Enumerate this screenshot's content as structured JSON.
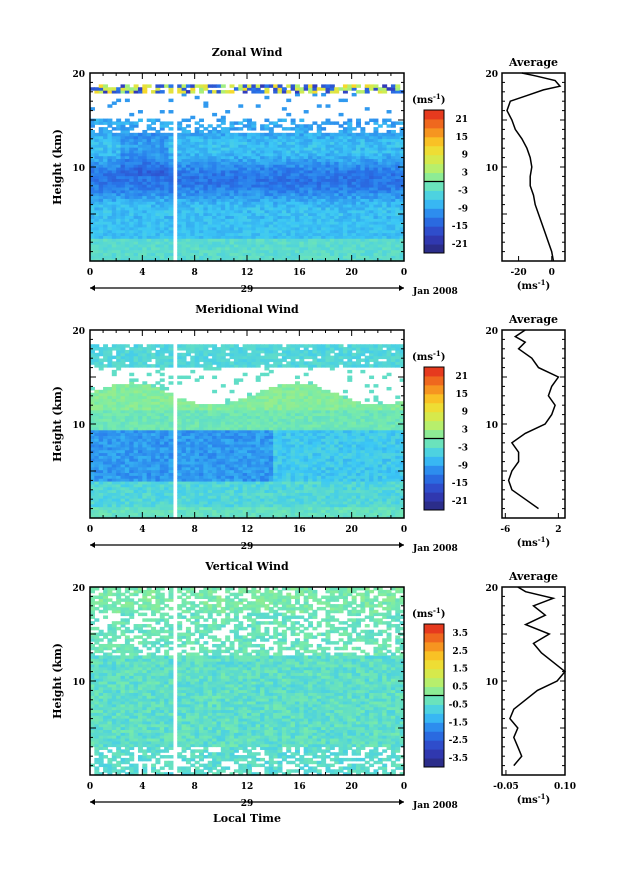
{
  "shared": {
    "ylabel": "Height (km)",
    "y_ticks": [
      "20",
      "10"
    ],
    "x_ticks": [
      "0",
      "4",
      "8",
      "12",
      "16",
      "20",
      "0"
    ],
    "day_label": "29",
    "date_label": "Jan 2008",
    "xlabel": "Local Time",
    "profile_title": "Average",
    "unit_label": "(ms",
    "unit_exp": "-1",
    "unit_close": ")"
  },
  "chart_data": [
    {
      "id": "zonal",
      "type": "heatmap",
      "title": "Zonal Wind",
      "ylim": [
        0,
        20
      ],
      "xlim": [
        0,
        24
      ],
      "colorbar": {
        "ticks": [
          "21",
          "15",
          "9",
          "3",
          "-3",
          "-9",
          "-15",
          "-21"
        ],
        "range": [
          -24,
          24
        ]
      },
      "profile": {
        "xlim": [
          -30,
          8
        ],
        "x_ticks": [
          -20,
          0
        ],
        "x_tick_labels": [
          "-20",
          "0"
        ],
        "points": [
          [
            1,
            0
          ],
          [
            0,
            1
          ],
          [
            -2,
            2
          ],
          [
            -4,
            3
          ],
          [
            -6,
            4
          ],
          [
            -8,
            5
          ],
          [
            -10,
            6
          ],
          [
            -11,
            7
          ],
          [
            -13,
            8
          ],
          [
            -13,
            9
          ],
          [
            -12,
            10
          ],
          [
            -13,
            11
          ],
          [
            -15,
            12
          ],
          [
            -18,
            13
          ],
          [
            -22,
            14
          ],
          [
            -24,
            15
          ],
          [
            -27,
            16
          ],
          [
            -25,
            17
          ],
          [
            -15,
            17.6
          ],
          [
            -5,
            18.2
          ],
          [
            5,
            18.6
          ],
          [
            2,
            19.2
          ],
          [
            -10,
            19.7
          ],
          [
            -18,
            20
          ]
        ]
      }
    },
    {
      "id": "meridional",
      "type": "heatmap",
      "title": "Meridional Wind",
      "ylim": [
        0,
        20
      ],
      "xlim": [
        0,
        24
      ],
      "colorbar": {
        "ticks": [
          "21",
          "15",
          "9",
          "3",
          "-3",
          "-9",
          "-15",
          "-21"
        ],
        "range": [
          -24,
          24
        ]
      },
      "profile": {
        "xlim": [
          -6.5,
          3
        ],
        "x_ticks": [
          -6,
          2
        ],
        "x_tick_labels": [
          "-6",
          "2"
        ],
        "points": [
          [
            -1,
            1
          ],
          [
            -3,
            2
          ],
          [
            -5,
            3
          ],
          [
            -5.5,
            4
          ],
          [
            -5,
            5
          ],
          [
            -4,
            6
          ],
          [
            -4,
            7
          ],
          [
            -5,
            8
          ],
          [
            -3,
            9
          ],
          [
            0,
            10
          ],
          [
            1,
            11
          ],
          [
            1.5,
            12
          ],
          [
            0.5,
            13
          ],
          [
            1,
            14
          ],
          [
            2,
            15
          ],
          [
            -1,
            16
          ],
          [
            -2,
            17
          ],
          [
            -4,
            18
          ],
          [
            -3,
            18.7
          ],
          [
            -4.5,
            19.3
          ],
          [
            -3,
            20
          ]
        ]
      }
    },
    {
      "id": "vertical",
      "type": "heatmap",
      "title": "Vertical Wind",
      "ylim": [
        0,
        20
      ],
      "xlim": [
        0,
        24
      ],
      "colorbar": {
        "ticks": [
          "3.5",
          "2.5",
          "1.5",
          "0.5",
          "-0.5",
          "-1.5",
          "-2.5",
          "-3.5"
        ],
        "range": [
          -4,
          4
        ]
      },
      "profile": {
        "xlim": [
          -0.06,
          0.1
        ],
        "x_ticks": [
          -0.05,
          0.1
        ],
        "x_tick_labels": [
          "-0.05",
          "0.10"
        ],
        "points": [
          [
            -0.03,
            1
          ],
          [
            -0.01,
            2
          ],
          [
            -0.02,
            3
          ],
          [
            -0.03,
            4
          ],
          [
            -0.02,
            5
          ],
          [
            -0.04,
            6
          ],
          [
            -0.03,
            7
          ],
          [
            0.0,
            8
          ],
          [
            0.03,
            9
          ],
          [
            0.08,
            10
          ],
          [
            0.1,
            11
          ],
          [
            0.07,
            12
          ],
          [
            0.04,
            13
          ],
          [
            0.02,
            14
          ],
          [
            0.06,
            15
          ],
          [
            0.0,
            16
          ],
          [
            0.05,
            17
          ],
          [
            0.02,
            18
          ],
          [
            0.07,
            18.8
          ],
          [
            0.0,
            19.5
          ],
          [
            -0.02,
            20
          ]
        ]
      }
    }
  ]
}
